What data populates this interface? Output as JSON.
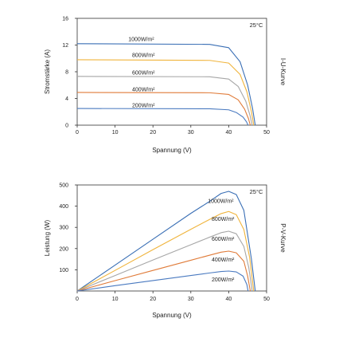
{
  "colors": {
    "1000": "#3a6fb5",
    "800": "#f0b43c",
    "600": "#a6a6a6",
    "400": "#e07b39",
    "200": "#4a7ac0"
  },
  "chart_data": [
    {
      "id": "iu",
      "type": "line",
      "title": "I-U-Kurve",
      "annotation": "25°C",
      "xlabel": "Spannung (V)",
      "ylabel": "Stromstärke (A)",
      "xlim": [
        0,
        50
      ],
      "ylim": [
        0,
        16
      ],
      "xticks": [
        "0",
        "10",
        "20",
        "30",
        "40",
        "50"
      ],
      "yticks": [
        "0",
        "4",
        "8",
        "12",
        "16"
      ],
      "series": [
        {
          "name": "1000W/m²",
          "color_key": "1000",
          "label_x": 13.5,
          "label_y": 12.6,
          "x": [
            0,
            35,
            40,
            43,
            45,
            46.3,
            47
          ],
          "y": [
            12.2,
            12.1,
            11.6,
            9.5,
            6,
            2.5,
            0
          ]
        },
        {
          "name": "800W/m²",
          "color_key": "800",
          "label_x": 14.5,
          "label_y": 10.2,
          "x": [
            0,
            35,
            40,
            43,
            44.8,
            46,
            46.6
          ],
          "y": [
            9.8,
            9.7,
            9.3,
            7.6,
            5,
            2,
            0
          ]
        },
        {
          "name": "600W/m²",
          "color_key": "600",
          "label_x": 14.5,
          "label_y": 7.6,
          "x": [
            0,
            35,
            40,
            42.5,
            44.5,
            45.6,
            46.2
          ],
          "y": [
            7.3,
            7.25,
            6.9,
            5.8,
            3.6,
            1.5,
            0
          ]
        },
        {
          "name": "400W/m²",
          "color_key": "400",
          "label_x": 14.5,
          "label_y": 5.1,
          "x": [
            0,
            35,
            40,
            42.5,
            44.2,
            45.2,
            45.7
          ],
          "y": [
            4.9,
            4.85,
            4.6,
            3.8,
            2.4,
            1,
            0
          ]
        },
        {
          "name": "200W/m²",
          "color_key": "200",
          "label_x": 14.5,
          "label_y": 2.7,
          "x": [
            0,
            35,
            40,
            42,
            43.8,
            44.7,
            45.1
          ],
          "y": [
            2.5,
            2.45,
            2.3,
            1.9,
            1.2,
            0.5,
            0
          ]
        }
      ]
    },
    {
      "id": "pv",
      "type": "line",
      "title": "P-V-Kurve",
      "annotation": "25°C",
      "xlabel": "Spannung (V)",
      "ylabel": "Leistung (W)",
      "xlim": [
        0,
        50
      ],
      "ylim": [
        0,
        500
      ],
      "xticks": [
        "0",
        "10",
        "20",
        "30",
        "40",
        "50"
      ],
      "yticks": [
        "100",
        "200",
        "300",
        "400",
        "500"
      ],
      "series": [
        {
          "name": "1000W/m²",
          "color_key": "1000",
          "label_x": 34.5,
          "label_y": 415,
          "x": [
            0,
            10,
            20,
            30,
            35,
            38,
            40,
            42,
            44,
            46,
            47
          ],
          "y": [
            0,
            122,
            244,
            366,
            423,
            460,
            470,
            455,
            380,
            150,
            0
          ]
        },
        {
          "name": "800W/m²",
          "color_key": "800",
          "label_x": 35.5,
          "label_y": 330,
          "x": [
            0,
            10,
            20,
            30,
            35,
            38,
            40,
            42,
            44,
            45.5,
            46.6
          ],
          "y": [
            0,
            97,
            195,
            291,
            338,
            365,
            375,
            360,
            290,
            160,
            0
          ]
        },
        {
          "name": "600W/m²",
          "color_key": "600",
          "label_x": 35.5,
          "label_y": 237,
          "x": [
            0,
            10,
            20,
            30,
            35,
            38,
            40,
            42,
            44,
            45.3,
            46.2
          ],
          "y": [
            0,
            73,
            146,
            218,
            254,
            275,
            282,
            270,
            210,
            110,
            0
          ]
        },
        {
          "name": "400W/m²",
          "color_key": "400",
          "label_x": 35.5,
          "label_y": 140,
          "x": [
            0,
            10,
            20,
            30,
            35,
            38,
            40,
            42,
            44,
            45,
            45.7
          ],
          "y": [
            0,
            49,
            97,
            145,
            169,
            183,
            188,
            180,
            140,
            70,
            0
          ]
        },
        {
          "name": "200W/m²",
          "color_key": "200",
          "label_x": 35.5,
          "label_y": 45,
          "x": [
            0,
            10,
            20,
            30,
            35,
            38,
            40,
            42,
            43.8,
            44.8,
            45.1
          ],
          "y": [
            0,
            25,
            49,
            73,
            85,
            92,
            94,
            90,
            70,
            30,
            0
          ]
        }
      ]
    }
  ]
}
